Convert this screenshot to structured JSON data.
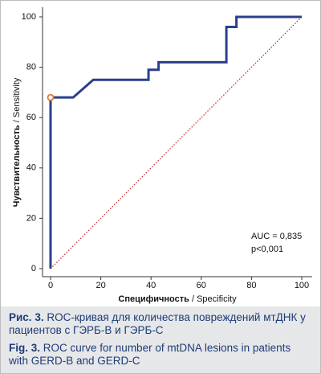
{
  "chart_data": {
    "type": "line",
    "xlabel": {
      "ru": "Специфичность",
      "en": "/ Specificity"
    },
    "ylabel": {
      "ru": "Чувствительность",
      "en": "/ Sensitivity"
    },
    "x": [
      0,
      0,
      9,
      17,
      39,
      39,
      43,
      43,
      70,
      70,
      74,
      74,
      100
    ],
    "series": [
      {
        "color": "#2b3f8c",
        "values": [
          0,
          68,
          68,
          75,
          75,
          79,
          79,
          82,
          82,
          96,
          96,
          100,
          100
        ]
      }
    ],
    "diagonal": {
      "color": "#b3282d",
      "x": [
        0,
        100
      ],
      "values": [
        0,
        100
      ]
    },
    "marker": {
      "color": "#e07a2e",
      "x": 0,
      "value": 68
    },
    "xlim": [
      0,
      100
    ],
    "ylim": [
      0,
      100
    ],
    "xticks": [
      0,
      20,
      40,
      60,
      80,
      100
    ],
    "yticks": [
      0,
      20,
      40,
      60,
      80,
      100
    ],
    "annotations": [
      "AUC = 0,835",
      "p<0,001"
    ]
  },
  "caption": [
    {
      "label": "Рис. 3.",
      "text": "ROC-кривая для количества повреждений мтДНК у пациентов с ГЭРБ-В и ГЭРБ-С"
    },
    {
      "label": "Fig. 3.",
      "text": "ROC curve for number of mtDNA lesions in patients with GERD-B and GERD-C"
    }
  ]
}
